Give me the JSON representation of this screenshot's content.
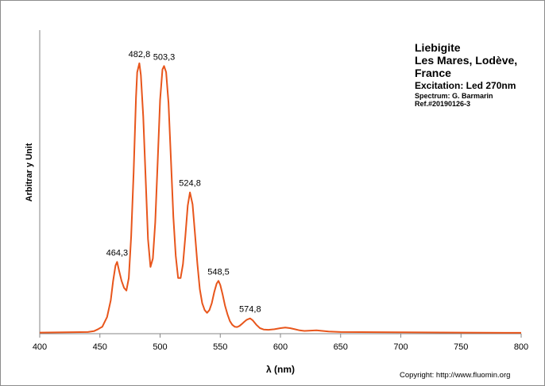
{
  "chart_data": {
    "type": "line",
    "title": "",
    "xlabel": "λ (nm)",
    "ylabel": "Arbitrar y Unit",
    "xlim": [
      400,
      800
    ],
    "ylim": [
      0,
      1
    ],
    "xticks": [
      400,
      450,
      500,
      550,
      600,
      650,
      700,
      750,
      800
    ],
    "line_color": "#e8561c",
    "grid": false,
    "series": [
      {
        "x": [
          400,
          420,
          440,
          445,
          448,
          452,
          456,
          459,
          461,
          463,
          464.3,
          466,
          468,
          470,
          472,
          474,
          476,
          478,
          480,
          481,
          482.8,
          484,
          486,
          488,
          490,
          492,
          494,
          496,
          498,
          500,
          502,
          503.3,
          505,
          507,
          509,
          511,
          513,
          515,
          517,
          519,
          521,
          523,
          524.8,
          527,
          529,
          531,
          533,
          535,
          537,
          539,
          541,
          543,
          545,
          547,
          548.5,
          550,
          552,
          554,
          556,
          558,
          560,
          562,
          564,
          566,
          568,
          570,
          572,
          574.8,
          577,
          580,
          583,
          586,
          590,
          595,
          600,
          604,
          608,
          612,
          616,
          620,
          630,
          640,
          650,
          700,
          750,
          800
        ],
        "y": [
          0.004,
          0.005,
          0.006,
          0.009,
          0.015,
          0.025,
          0.06,
          0.12,
          0.19,
          0.245,
          0.258,
          0.225,
          0.19,
          0.165,
          0.155,
          0.2,
          0.35,
          0.58,
          0.85,
          0.94,
          0.972,
          0.93,
          0.78,
          0.56,
          0.34,
          0.24,
          0.27,
          0.4,
          0.62,
          0.84,
          0.95,
          0.962,
          0.94,
          0.83,
          0.63,
          0.42,
          0.28,
          0.2,
          0.2,
          0.25,
          0.35,
          0.46,
          0.508,
          0.465,
          0.36,
          0.25,
          0.16,
          0.11,
          0.085,
          0.075,
          0.085,
          0.11,
          0.15,
          0.18,
          0.19,
          0.175,
          0.14,
          0.1,
          0.07,
          0.045,
          0.032,
          0.025,
          0.024,
          0.028,
          0.035,
          0.043,
          0.05,
          0.055,
          0.048,
          0.032,
          0.02,
          0.015,
          0.014,
          0.016,
          0.02,
          0.022,
          0.02,
          0.016,
          0.012,
          0.01,
          0.012,
          0.008,
          0.006,
          0.005,
          0.004,
          0.003
        ]
      }
    ],
    "peaks": [
      {
        "x": 464.3,
        "y": 0.258,
        "label": "464,3"
      },
      {
        "x": 482.8,
        "y": 0.972,
        "label": "482,8"
      },
      {
        "x": 503.3,
        "y": 0.962,
        "label": "503,3"
      },
      {
        "x": 524.8,
        "y": 0.508,
        "label": "524,8"
      },
      {
        "x": 548.5,
        "y": 0.19,
        "label": "548,5"
      },
      {
        "x": 574.8,
        "y": 0.055,
        "label": "574,8"
      }
    ]
  },
  "info": {
    "mineral": "Liebigite",
    "locality_line1": "Les Mares, Lodève,",
    "locality_line2": "France",
    "excitation": "Excitation:  Led 270nm",
    "spectrum": "Spectrum: G. Barmarin",
    "ref": "Ref.#20190126-3"
  },
  "copyright": "Copyright: http://www.fluomin.org"
}
